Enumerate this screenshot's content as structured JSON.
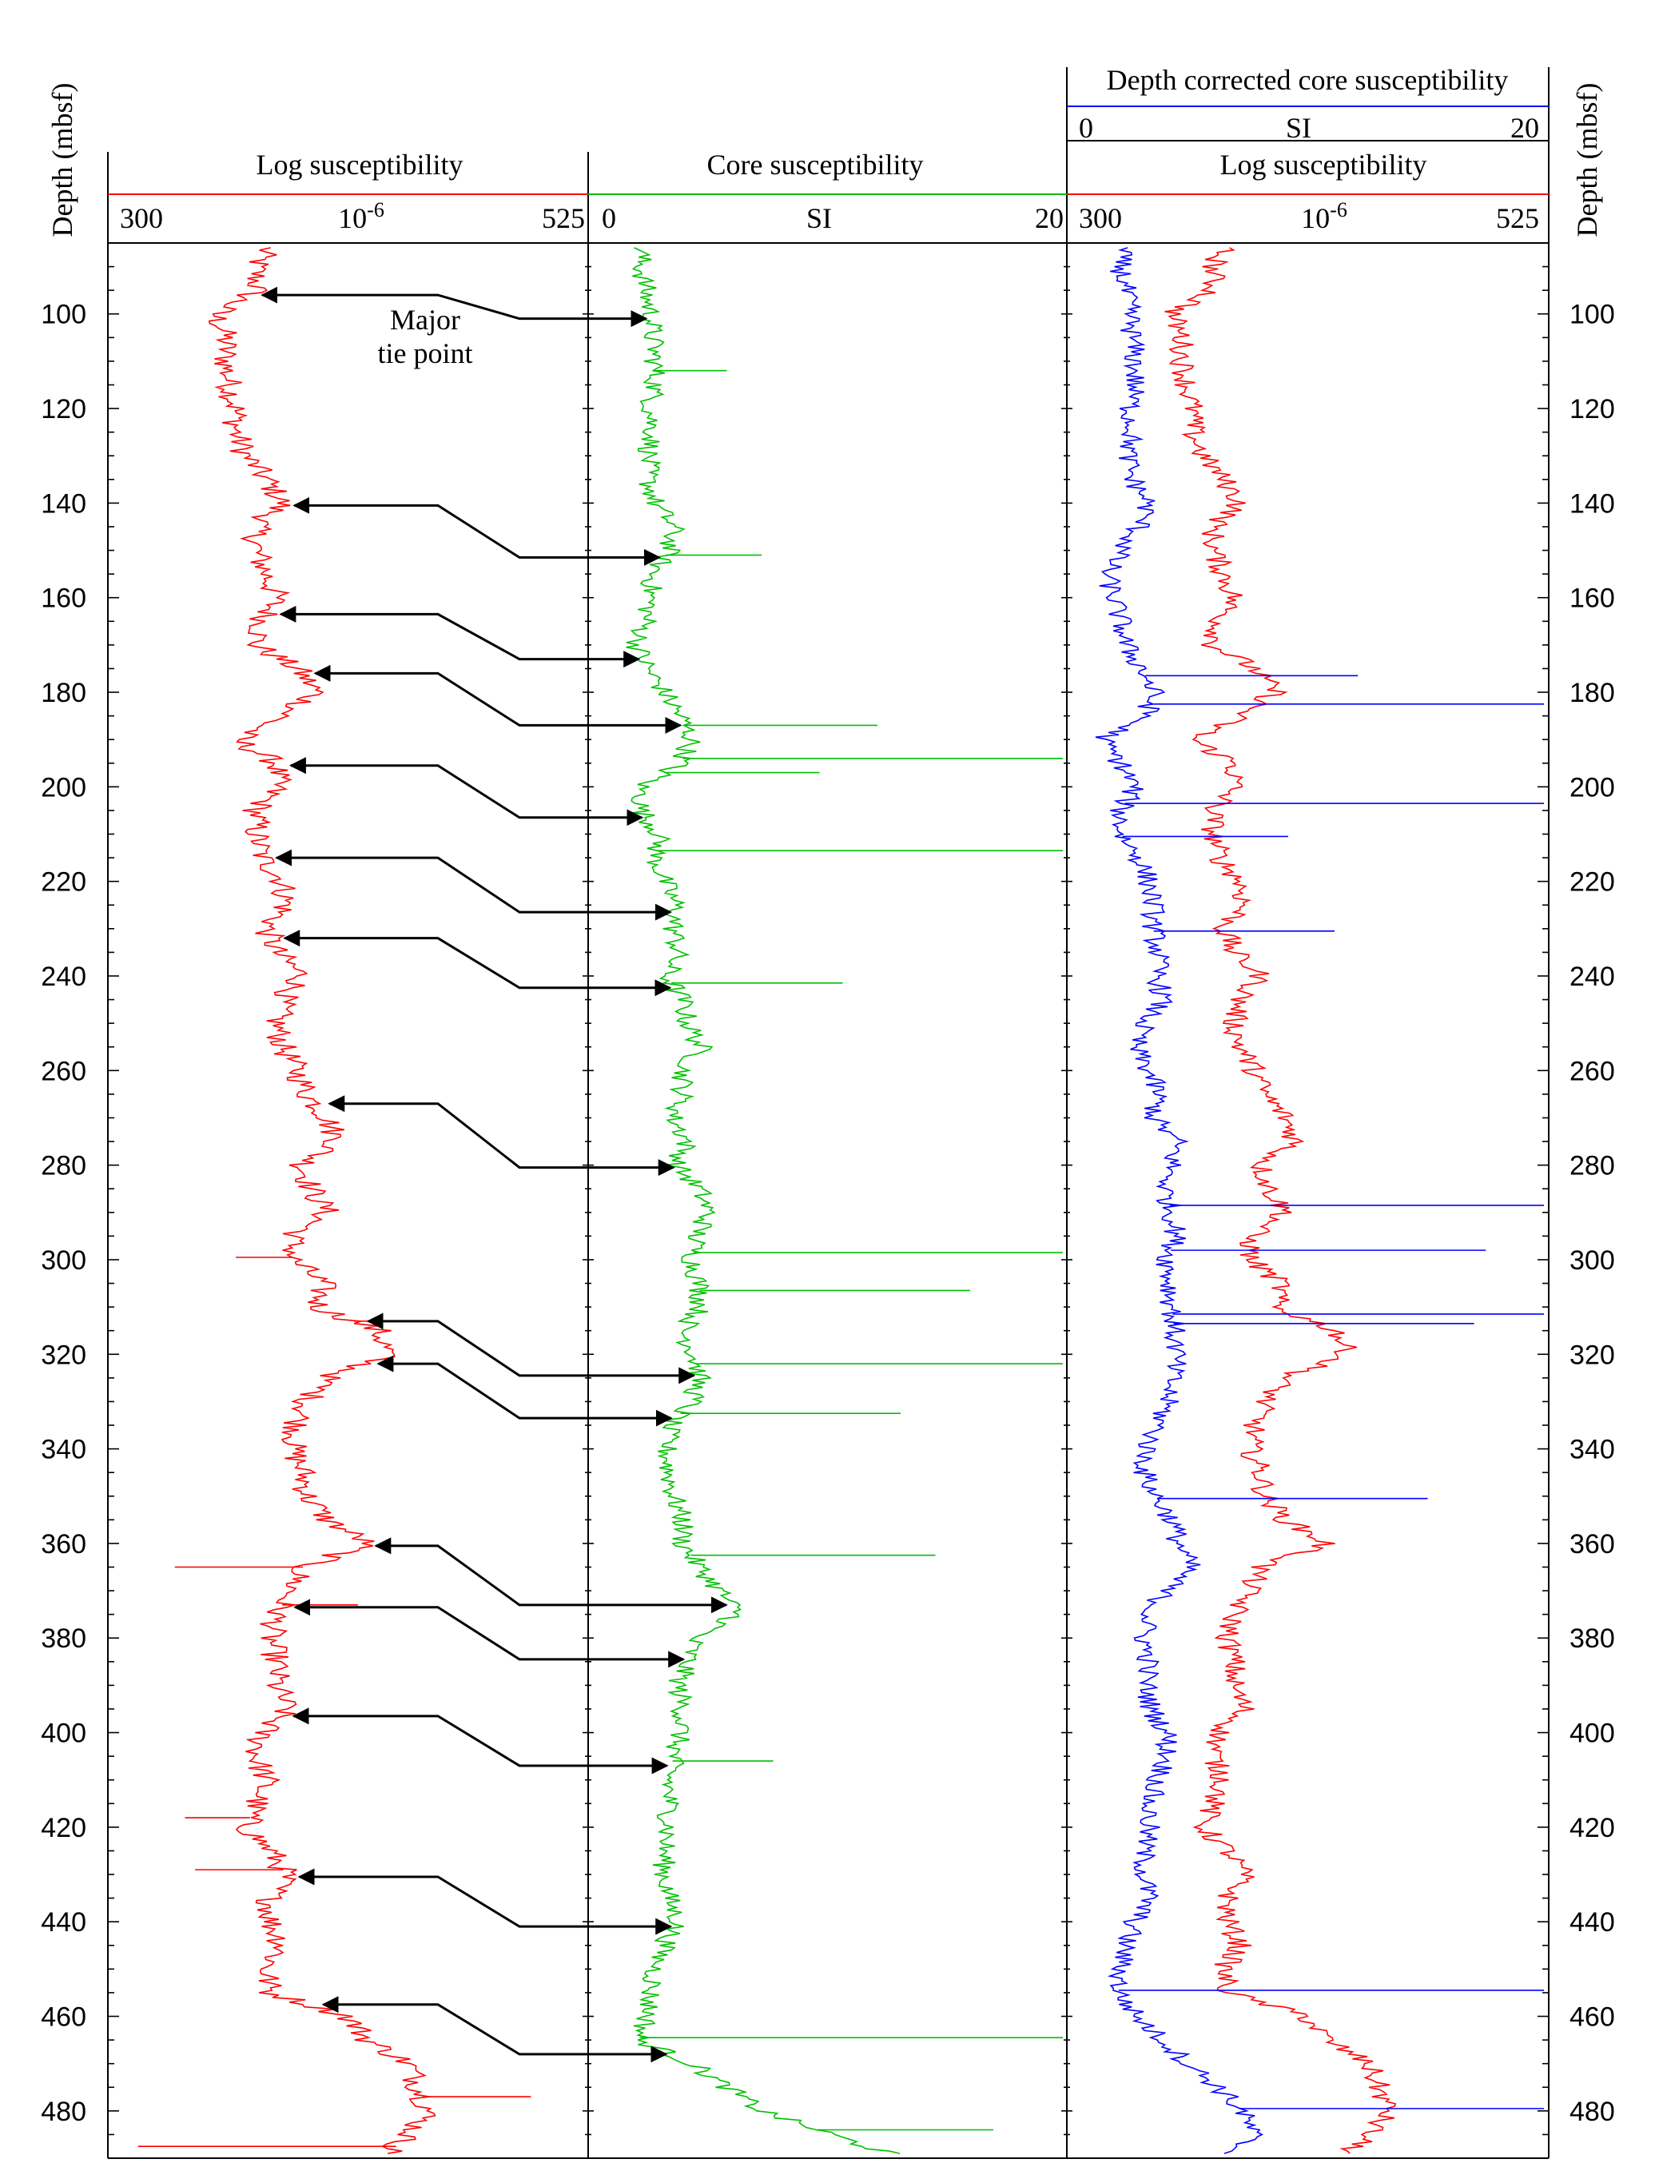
{
  "y_axis": {
    "title_left": "Depth (mbsf)",
    "title_right": "Depth (mbsf)",
    "range": [
      85,
      490
    ],
    "reversed": true,
    "tick_labels": [
      "100",
      "120",
      "140",
      "160",
      "180",
      "200",
      "220",
      "240",
      "260",
      "280",
      "300",
      "320",
      "340",
      "360",
      "380",
      "400",
      "420",
      "440",
      "460",
      "480"
    ]
  },
  "panels": {
    "log_left": {
      "title": "Log susceptibility",
      "unit_base": "10",
      "unit_exp": "-6",
      "min_label": "300",
      "max_label": "525"
    },
    "core": {
      "title": "Core susceptibility",
      "unit": "SI",
      "min_label": "0",
      "max_label": "20"
    },
    "right_top": {
      "title": "Depth corrected core susceptibility",
      "unit": "SI",
      "min_label": "0",
      "max_label": "20"
    },
    "right_log": {
      "title": "Log susceptibility",
      "unit_base": "10",
      "unit_exp": "-6",
      "min_label": "300",
      "max_label": "525"
    }
  },
  "annotation": {
    "line1": "Major",
    "line2": "tie point"
  },
  "colors": {
    "log": "#ff0000",
    "core": "#00c000",
    "corrected": "#0000ff",
    "axes": "#000000"
  },
  "chart_data": {
    "type": "line",
    "y_label": "Depth (mbsf)",
    "ylim": [
      85,
      490
    ],
    "y_reversed": true,
    "panels": [
      {
        "name": "Log susceptibility (left panel)",
        "xlim": [
          300,
          525
        ],
        "series": [
          {
            "name": "Log susceptibility",
            "color": "#ff0000",
            "depth": [
              86,
              90,
              95,
              100,
              105,
              110,
              115,
              120,
              125,
              130,
              135,
              140,
              145,
              150,
              155,
              160,
              165,
              170,
              175,
              180,
              185,
              190,
              195,
              200,
              205,
              210,
              215,
              220,
              225,
              230,
              235,
              240,
              245,
              250,
              255,
              260,
              265,
              270,
              275,
              280,
              285,
              290,
              295,
              300,
              305,
              310,
              315,
              320,
              325,
              330,
              335,
              340,
              345,
              350,
              355,
              360,
              365,
              370,
              375,
              380,
              385,
              390,
              395,
              400,
              405,
              410,
              415,
              420,
              425,
              430,
              435,
              440,
              445,
              450,
              455,
              460,
              465,
              470,
              475,
              480,
              485,
              489
            ],
            "values": [
              370,
              365,
              365,
              345,
              350,
              350,
              352,
              355,
              355,
              360,
              370,
              378,
              365,
              365,
              370,
              375,
              368,
              365,
              385,
              395,
              378,
              355,
              375,
              375,
              365,
              365,
              368,
              378,
              380,
              370,
              375,
              388,
              378,
              375,
              378,
              385,
              390,
              400,
              405,
              388,
              392,
              400,
              383,
              383,
              398,
              395,
              425,
              430,
              400,
              390,
              385,
              383,
              388,
              390,
              400,
              420,
              388,
              382,
              375,
              372,
              375,
              375,
              380,
              368,
              365,
              370,
              365,
              360,
              372,
              380,
              372,
              372,
              378,
              370,
              372,
              410,
              420,
              440,
              445,
              450,
              440,
              430
            ],
            "spikes": [
              {
                "depth": 299.5,
                "value": 355
              },
              {
                "depth": 313.0,
                "value": 445
              },
              {
                "depth": 365.0,
                "value": 325
              },
              {
                "depth": 373.0,
                "value": 415
              },
              {
                "depth": 418.0,
                "value": 330
              },
              {
                "depth": 429.0,
                "value": 335
              },
              {
                "depth": 477.0,
                "value": 500
              },
              {
                "depth": 487.5,
                "value": 307
              }
            ]
          }
        ]
      },
      {
        "name": "Core susceptibility",
        "xlim": [
          0,
          20
        ],
        "series": [
          {
            "name": "Core susceptibility",
            "color": "#00c000",
            "depth": [
              86,
              90,
              95,
              100,
              105,
              110,
              115,
              120,
              125,
              130,
              135,
              140,
              145,
              150,
              155,
              160,
              165,
              170,
              175,
              180,
              185,
              190,
              195,
              200,
              205,
              210,
              215,
              220,
              225,
              230,
              235,
              240,
              245,
              250,
              255,
              260,
              265,
              270,
              275,
              280,
              285,
              290,
              295,
              300,
              305,
              310,
              315,
              320,
              325,
              330,
              335,
              340,
              345,
              350,
              355,
              360,
              365,
              370,
              375,
              380,
              385,
              390,
              395,
              400,
              405,
              410,
              415,
              420,
              425,
              430,
              435,
              440,
              445,
              450,
              455,
              460,
              465,
              470,
              475,
              480,
              485,
              489
            ],
            "values": [
              1.8,
              1.8,
              2.0,
              2.2,
              2.3,
              2.4,
              2.4,
              2.2,
              2.3,
              2.1,
              2.1,
              2.4,
              3.2,
              3.0,
              2.3,
              2.2,
              2.0,
              1.6,
              2.1,
              2.8,
              3.5,
              4.0,
              3.5,
              1.8,
              1.8,
              2.6,
              2.4,
              2.8,
              3.3,
              3.2,
              3.4,
              2.9,
              3.6,
              3.8,
              4.4,
              3.6,
              3.6,
              3.2,
              3.8,
              3.3,
              4.3,
              4.7,
              4.2,
              4.0,
              4.3,
              4.4,
              3.6,
              4.1,
              4.3,
              4.0,
              3.0,
              2.9,
              3.0,
              3.2,
              3.6,
              3.6,
              4.3,
              5.2,
              6.0,
              4.1,
              3.8,
              3.4,
              3.6,
              3.5,
              3.2,
              3.0,
              3.0,
              3.0,
              2.8,
              2.8,
              3.0,
              3.4,
              2.8,
              2.4,
              2.2,
              2.1,
              1.7,
              4.0,
              5.5,
              7.0,
              10.0,
              12.5
            ],
            "spikes": [
              {
                "depth": 112.0,
                "value": 5.5
              },
              {
                "depth": 151.0,
                "value": 7.0
              },
              {
                "depth": 187.0,
                "value": 12.0
              },
              {
                "depth": 194.0,
                "value": 20.0
              },
              {
                "depth": 197.0,
                "value": 9.5
              },
              {
                "depth": 213.5,
                "value": 20.0
              },
              {
                "depth": 241.5,
                "value": 10.5
              },
              {
                "depth": 298.5,
                "value": 20.0
              },
              {
                "depth": 306.5,
                "value": 16.0
              },
              {
                "depth": 322.0,
                "value": 20.0
              },
              {
                "depth": 332.5,
                "value": 13.0
              },
              {
                "depth": 362.5,
                "value": 14.5
              },
              {
                "depth": 406.0,
                "value": 7.5
              },
              {
                "depth": 464.5,
                "value": 20.0
              },
              {
                "depth": 484.0,
                "value": 17.0
              }
            ]
          }
        ]
      },
      {
        "name": "Depth corrected core susceptibility / Log susceptibility (right panel)",
        "xlim_top": [
          0,
          20
        ],
        "xlim_bottom": [
          300,
          525
        ],
        "series": [
          {
            "name": "Depth corrected core susceptibility",
            "axis": "top",
            "color": "#0000ff",
            "depth": [
              86,
              90,
              95,
              100,
              105,
              110,
              115,
              120,
              125,
              130,
              135,
              140,
              145,
              150,
              155,
              160,
              165,
              170,
              175,
              180,
              185,
              190,
              195,
              200,
              205,
              210,
              215,
              220,
              225,
              230,
              235,
              240,
              245,
              250,
              255,
              260,
              265,
              270,
              275,
              280,
              285,
              290,
              295,
              300,
              305,
              310,
              315,
              320,
              325,
              330,
              335,
              340,
              345,
              350,
              355,
              360,
              365,
              370,
              375,
              380,
              385,
              390,
              395,
              400,
              405,
              410,
              415,
              420,
              425,
              430,
              435,
              440,
              445,
              450,
              455,
              460,
              465,
              470,
              475,
              480,
              485,
              489
            ],
            "values": [
              1.8,
              1.8,
              2.0,
              2.2,
              2.3,
              2.4,
              2.4,
              2.2,
              2.3,
              2.1,
              2.3,
              3.0,
              2.6,
              1.8,
              1.2,
              1.5,
              1.8,
              2.0,
              2.7,
              3.2,
              2.9,
              1.0,
              1.8,
              2.4,
              1.8,
              1.8,
              2.6,
              3.0,
              3.2,
              3.2,
              3.4,
              3.4,
              3.6,
              2.8,
              2.4,
              3.0,
              3.4,
              3.2,
              4.2,
              4.0,
              3.7,
              4.0,
              4.2,
              3.8,
              3.9,
              4.0,
              4.1,
              4.2,
              4.0,
              3.8,
              3.4,
              2.9,
              2.8,
              3.3,
              4.0,
              4.3,
              4.8,
              3.7,
              3.0,
              2.8,
              3.0,
              2.9,
              3.1,
              3.8,
              3.8,
              3.4,
              3.0,
              3.0,
              2.8,
              2.8,
              3.0,
              2.4,
              2.0,
              1.8,
              1.7,
              2.5,
              3.6,
              4.7,
              6.0,
              7.0,
              7.5,
              6.5
            ],
            "spikes": [
              {
                "depth": 176.5,
                "value": 12.0
              },
              {
                "depth": 182.5,
                "value": 20.0
              },
              {
                "depth": 203.5,
                "value": 20.0
              },
              {
                "depth": 210.5,
                "value": 9.0
              },
              {
                "depth": 230.5,
                "value": 11.0
              },
              {
                "depth": 288.5,
                "value": 20.0
              },
              {
                "depth": 298.0,
                "value": 17.5
              },
              {
                "depth": 311.5,
                "value": 20.0
              },
              {
                "depth": 313.5,
                "value": 17.0
              },
              {
                "depth": 350.5,
                "value": 15.0
              },
              {
                "depth": 454.5,
                "value": 20.0
              },
              {
                "depth": 479.5,
                "value": 20.0
              }
            ]
          },
          {
            "name": "Log susceptibility",
            "axis": "bottom",
            "color": "#ff0000",
            "depth": [
              86,
              90,
              95,
              100,
              105,
              110,
              115,
              120,
              125,
              130,
              135,
              140,
              145,
              150,
              155,
              160,
              165,
              170,
              175,
              180,
              185,
              190,
              195,
              200,
              205,
              210,
              215,
              220,
              225,
              230,
              235,
              240,
              245,
              250,
              255,
              260,
              265,
              270,
              275,
              280,
              285,
              290,
              295,
              300,
              305,
              310,
              315,
              320,
              325,
              330,
              335,
              340,
              345,
              350,
              355,
              360,
              365,
              370,
              375,
              380,
              385,
              390,
              395,
              400,
              405,
              410,
              415,
              420,
              425,
              430,
              435,
              440,
              445,
              450,
              455,
              460,
              465,
              470,
              475,
              480,
              485,
              489
            ],
            "values": [
              370,
              365,
              365,
              345,
              350,
              350,
              352,
              355,
              355,
              360,
              370,
              378,
              365,
              365,
              370,
              375,
              368,
              365,
              385,
              395,
              378,
              355,
              375,
              375,
              365,
              365,
              368,
              378,
              380,
              370,
              375,
              388,
              378,
              375,
              378,
              385,
              390,
              400,
              405,
              388,
              392,
              400,
              383,
              383,
              398,
              395,
              425,
              430,
              400,
              390,
              385,
              383,
              388,
              390,
              400,
              420,
              388,
              382,
              375,
              372,
              375,
              375,
              380,
              368,
              365,
              370,
              365,
              360,
              372,
              380,
              372,
              372,
              378,
              370,
              372,
              410,
              420,
              440,
              445,
              450,
              440,
              430
            ]
          }
        ]
      }
    ],
    "tie_points": [
      {
        "log_depth": 96.0,
        "core_depth": 101.0,
        "label": "Major tie point"
      },
      {
        "log_depth": 140.5,
        "core_depth": 151.5
      },
      {
        "log_depth": 163.5,
        "core_depth": 173.0
      },
      {
        "log_depth": 176.0,
        "core_depth": 187.0
      },
      {
        "log_depth": 195.5,
        "core_depth": 206.5
      },
      {
        "log_depth": 215.0,
        "core_depth": 226.5
      },
      {
        "log_depth": 232.0,
        "core_depth": 242.5
      },
      {
        "log_depth": 267.0,
        "core_depth": 280.5
      },
      {
        "log_depth": 313.0,
        "core_depth": 324.5
      },
      {
        "log_depth": 322.0,
        "core_depth": 333.5
      },
      {
        "log_depth": 360.5,
        "core_depth": 373.0
      },
      {
        "log_depth": 373.5,
        "core_depth": 384.5
      },
      {
        "log_depth": 396.5,
        "core_depth": 407.0
      },
      {
        "log_depth": 430.5,
        "core_depth": 441.0
      },
      {
        "log_depth": 457.5,
        "core_depth": 468.0
      }
    ]
  }
}
